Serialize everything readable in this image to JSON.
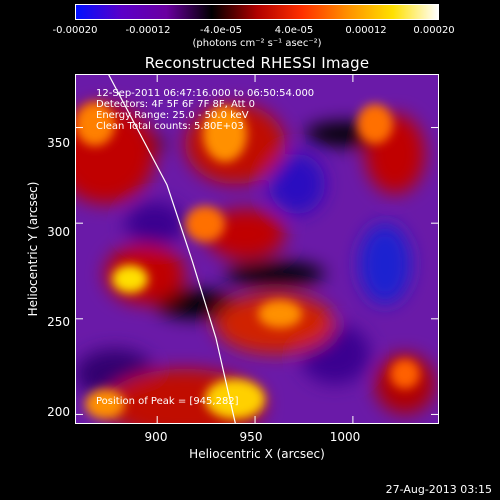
{
  "colorbar": {
    "tick_labels": [
      "-0.00020",
      "-0.00012",
      "-4.0e-05",
      "4.0e-05",
      "0.00012",
      "0.00020"
    ],
    "units": "(photons cm⁻² s⁻¹ asec⁻²)",
    "colormap": [
      "#0010ff",
      "#5a00c8",
      "#6a00a0",
      "#000000",
      "#b00000",
      "#ff3000",
      "#ff9000",
      "#ffe000",
      "#ffffff"
    ]
  },
  "chart_data": {
    "type": "heatmap",
    "title": "Reconstructed RHESSI Image",
    "xlabel": "Heliocentric X (arcsec)",
    "ylabel": "Heliocentric Y (arcsec)",
    "xlim": [
      858,
      1044
    ],
    "ylim": [
      195,
      378
    ],
    "x_ticks": [
      900,
      950,
      1000
    ],
    "y_ticks": [
      200,
      250,
      300,
      350
    ],
    "value_range": [
      -0.0002,
      0.0002
    ],
    "limb_curve": [
      [
        875,
        378
      ],
      [
        905,
        320
      ],
      [
        918,
        280
      ],
      [
        930,
        240
      ],
      [
        940,
        195
      ]
    ],
    "peak": [
      945,
      282
    ]
  },
  "info": {
    "line1": "12-Sep-2011 06:47:16.000 to 06:50:54.000",
    "line2": "Detectors: 4F 5F 6F 7F 8F, Att 0",
    "line3": "Energy Range: 25.0 - 50.0 keV",
    "line4": "Clean     Total counts: 5.80E+03"
  },
  "peak_text": "Position of Peak = [945,282]",
  "timestamp": "27-Aug-2013 03:15"
}
